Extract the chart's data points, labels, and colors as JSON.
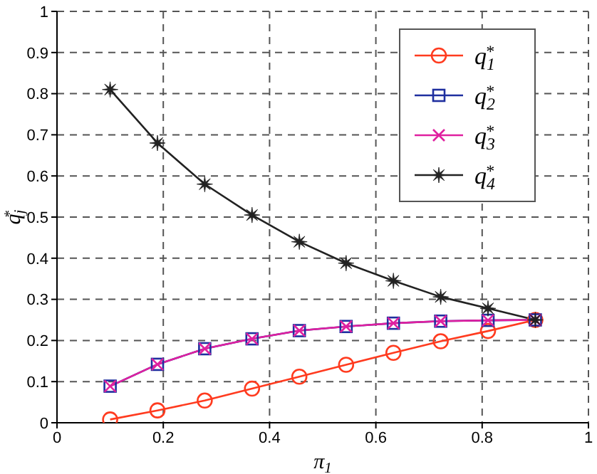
{
  "chart_data": {
    "type": "line",
    "xlabel": "π$_{1}$",
    "ylabel": "q$_{j}$$^{*}$",
    "x": [
      0.1,
      0.189,
      0.278,
      0.367,
      0.456,
      0.544,
      0.633,
      0.722,
      0.811,
      0.9
    ],
    "series": [
      {
        "name": "q$_{1}$$^{*}$",
        "color": "#ff3b1f",
        "marker": "circle",
        "values": [
          0.008,
          0.03,
          0.054,
          0.083,
          0.112,
          0.141,
          0.17,
          0.198,
          0.223,
          0.25
        ]
      },
      {
        "name": "q$_{2}$$^{*}$",
        "color": "#1f2f9f",
        "marker": "square",
        "values": [
          0.089,
          0.142,
          0.18,
          0.204,
          0.224,
          0.234,
          0.242,
          0.247,
          0.249,
          0.25
        ]
      },
      {
        "name": "q$_{3}$$^{*}$",
        "color": "#e020a0",
        "marker": "cross",
        "values": [
          0.089,
          0.142,
          0.18,
          0.204,
          0.224,
          0.234,
          0.242,
          0.247,
          0.249,
          0.25
        ]
      },
      {
        "name": "q$_{4}$$^{*}$",
        "color": "#222222",
        "marker": "star",
        "values": [
          0.81,
          0.68,
          0.58,
          0.505,
          0.44,
          0.388,
          0.345,
          0.306,
          0.278,
          0.25
        ]
      }
    ],
    "xlim": [
      0,
      1
    ],
    "ylim": [
      0,
      1
    ],
    "xticks": [
      0,
      0.2,
      0.4,
      0.6,
      0.8,
      1
    ],
    "yticks": [
      0,
      0.1,
      0.2,
      0.3,
      0.4,
      0.5,
      0.6,
      0.7,
      0.8,
      0.9,
      1
    ],
    "grid": true,
    "legend": "top right",
    "line_style": "solid"
  }
}
